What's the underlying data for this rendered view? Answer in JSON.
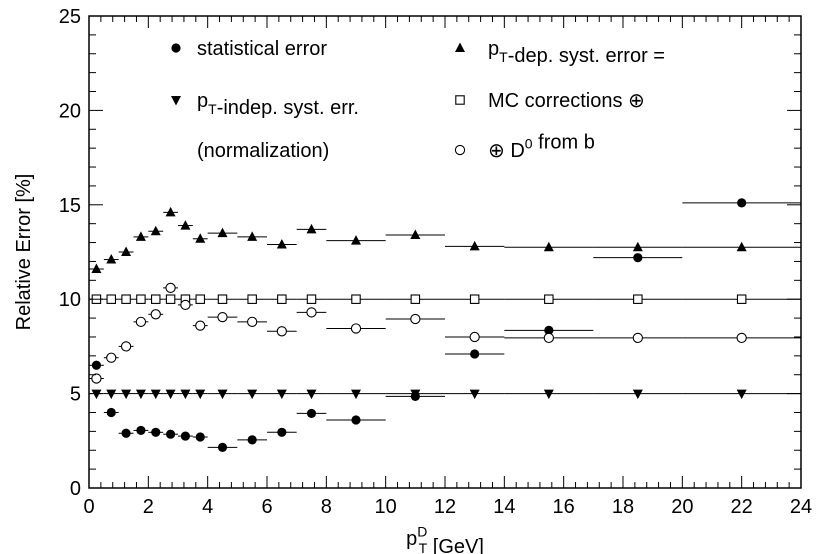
{
  "chart_data": {
    "type": "scatter",
    "title": "",
    "xlabel": "p_T^D [GeV]",
    "ylabel": "Relative Error [%]",
    "xlim": [
      0,
      24
    ],
    "ylim": [
      0,
      25
    ],
    "x_ticks": [
      0,
      2,
      4,
      6,
      8,
      10,
      12,
      14,
      16,
      18,
      20,
      22,
      24
    ],
    "y_ticks": [
      0,
      5,
      10,
      15,
      20,
      25
    ],
    "grid": false,
    "legend_position": "top",
    "bins": [
      {
        "x": 0.25,
        "lo": 0.0,
        "hi": 0.5
      },
      {
        "x": 0.75,
        "lo": 0.5,
        "hi": 1.0
      },
      {
        "x": 1.25,
        "lo": 1.0,
        "hi": 1.5
      },
      {
        "x": 1.75,
        "lo": 1.5,
        "hi": 2.0
      },
      {
        "x": 2.25,
        "lo": 2.0,
        "hi": 2.5
      },
      {
        "x": 2.75,
        "lo": 2.5,
        "hi": 3.0
      },
      {
        "x": 3.25,
        "lo": 3.0,
        "hi": 3.5
      },
      {
        "x": 3.75,
        "lo": 3.5,
        "hi": 4.0
      },
      {
        "x": 4.5,
        "lo": 4.0,
        "hi": 5.0
      },
      {
        "x": 5.5,
        "lo": 5.0,
        "hi": 6.0
      },
      {
        "x": 6.5,
        "lo": 6.0,
        "hi": 7.0
      },
      {
        "x": 7.5,
        "lo": 7.0,
        "hi": 8.0
      },
      {
        "x": 9.0,
        "lo": 8.0,
        "hi": 10.0
      },
      {
        "x": 11.0,
        "lo": 10.0,
        "hi": 12.0
      },
      {
        "x": 13.0,
        "lo": 12.0,
        "hi": 14.0
      },
      {
        "x": 15.5,
        "lo": 14.0,
        "hi": 17.0
      },
      {
        "x": 18.5,
        "lo": 17.0,
        "hi": 20.0
      },
      {
        "x": 22.0,
        "lo": 20.0,
        "hi": 24.0
      }
    ],
    "series": [
      {
        "marker": "filled-circle",
        "values": [
          6.5,
          4.0,
          2.9,
          3.05,
          2.95,
          2.85,
          2.75,
          2.7,
          2.15,
          2.55,
          2.95,
          3.95,
          3.6,
          4.85,
          7.1,
          8.35,
          12.2,
          15.1
        ]
      },
      {
        "marker": "filled-triangle-up",
        "values": [
          11.6,
          12.1,
          12.5,
          13.3,
          13.6,
          14.6,
          13.9,
          13.2,
          13.5,
          13.3,
          12.9,
          13.7,
          13.1,
          13.4,
          12.8,
          12.75,
          12.75,
          12.75
        ]
      },
      {
        "marker": "filled-triangle-down",
        "values": [
          5.0,
          5.0,
          5.0,
          5.0,
          5.0,
          5.0,
          5.0,
          5.0,
          5.0,
          5.0,
          5.0,
          5.0,
          5.0,
          5.0,
          5.0,
          5.0,
          5.0,
          5.0
        ]
      },
      {
        "marker": "open-square",
        "values": [
          10.0,
          10.0,
          10.0,
          10.0,
          10.0,
          10.0,
          10.0,
          10.0,
          10.0,
          10.0,
          10.0,
          10.0,
          10.0,
          10.0,
          10.0,
          10.0,
          10.0,
          10.0
        ]
      },
      {
        "marker": "open-circle",
        "values": [
          5.8,
          6.9,
          7.5,
          8.8,
          9.2,
          10.6,
          9.7,
          8.6,
          9.05,
          8.8,
          8.3,
          9.3,
          8.45,
          8.95,
          8.0,
          7.95,
          7.95,
          7.95
        ]
      }
    ],
    "legend": [
      {
        "marker": "filled-circle",
        "text": "statistical error"
      },
      {
        "marker": "filled-triangle-down",
        "text": "p_T-indep. syst. err."
      },
      {
        "marker": "none",
        "text": "(normalization)"
      },
      {
        "marker": "filled-triangle-up",
        "text": "p_T-dep. syst. error ="
      },
      {
        "marker": "open-square",
        "text": "MC corrections ⊕"
      },
      {
        "marker": "open-circle",
        "text": "⊕ D^0 from b"
      }
    ]
  }
}
